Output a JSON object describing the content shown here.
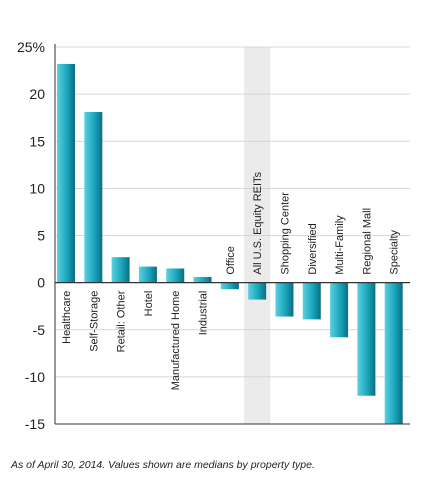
{
  "chart_data": {
    "type": "bar",
    "categories": [
      "Healthcare",
      "Self-Storage",
      "Retail: Other",
      "Hotel",
      "Manufactured Home",
      "Industrial",
      "Office",
      "All U.S. Equity REITs",
      "Shopping Center",
      "Diversified",
      "Multi-Family",
      "Regional Mall",
      "Specialty"
    ],
    "values": [
      23.2,
      18.1,
      2.7,
      1.7,
      1.5,
      0.6,
      -0.7,
      -1.8,
      -3.6,
      -3.9,
      -5.8,
      -12.0,
      -15.0
    ],
    "highlighted_category": "All U.S. Equity REITs",
    "yticks": [
      "25%",
      "20",
      "15",
      "10",
      "5",
      "0",
      "-5",
      "-10",
      "-15"
    ],
    "ytick_values": [
      25,
      20,
      15,
      10,
      5,
      0,
      -5,
      -10,
      -15
    ],
    "ylim": [
      -15,
      25
    ],
    "grid": true,
    "title": "",
    "xlabel": "",
    "ylabel": "",
    "colors": {
      "bar_light": "#5cd0e0",
      "bar_mid": "#1aa6bc",
      "bar_dark": "#0a6e82",
      "highlight_band": "#ebebeb",
      "grid": "#cccccc",
      "axis": "#333333"
    }
  },
  "caption": "As of April 30, 2014. Values shown are medians by property type."
}
